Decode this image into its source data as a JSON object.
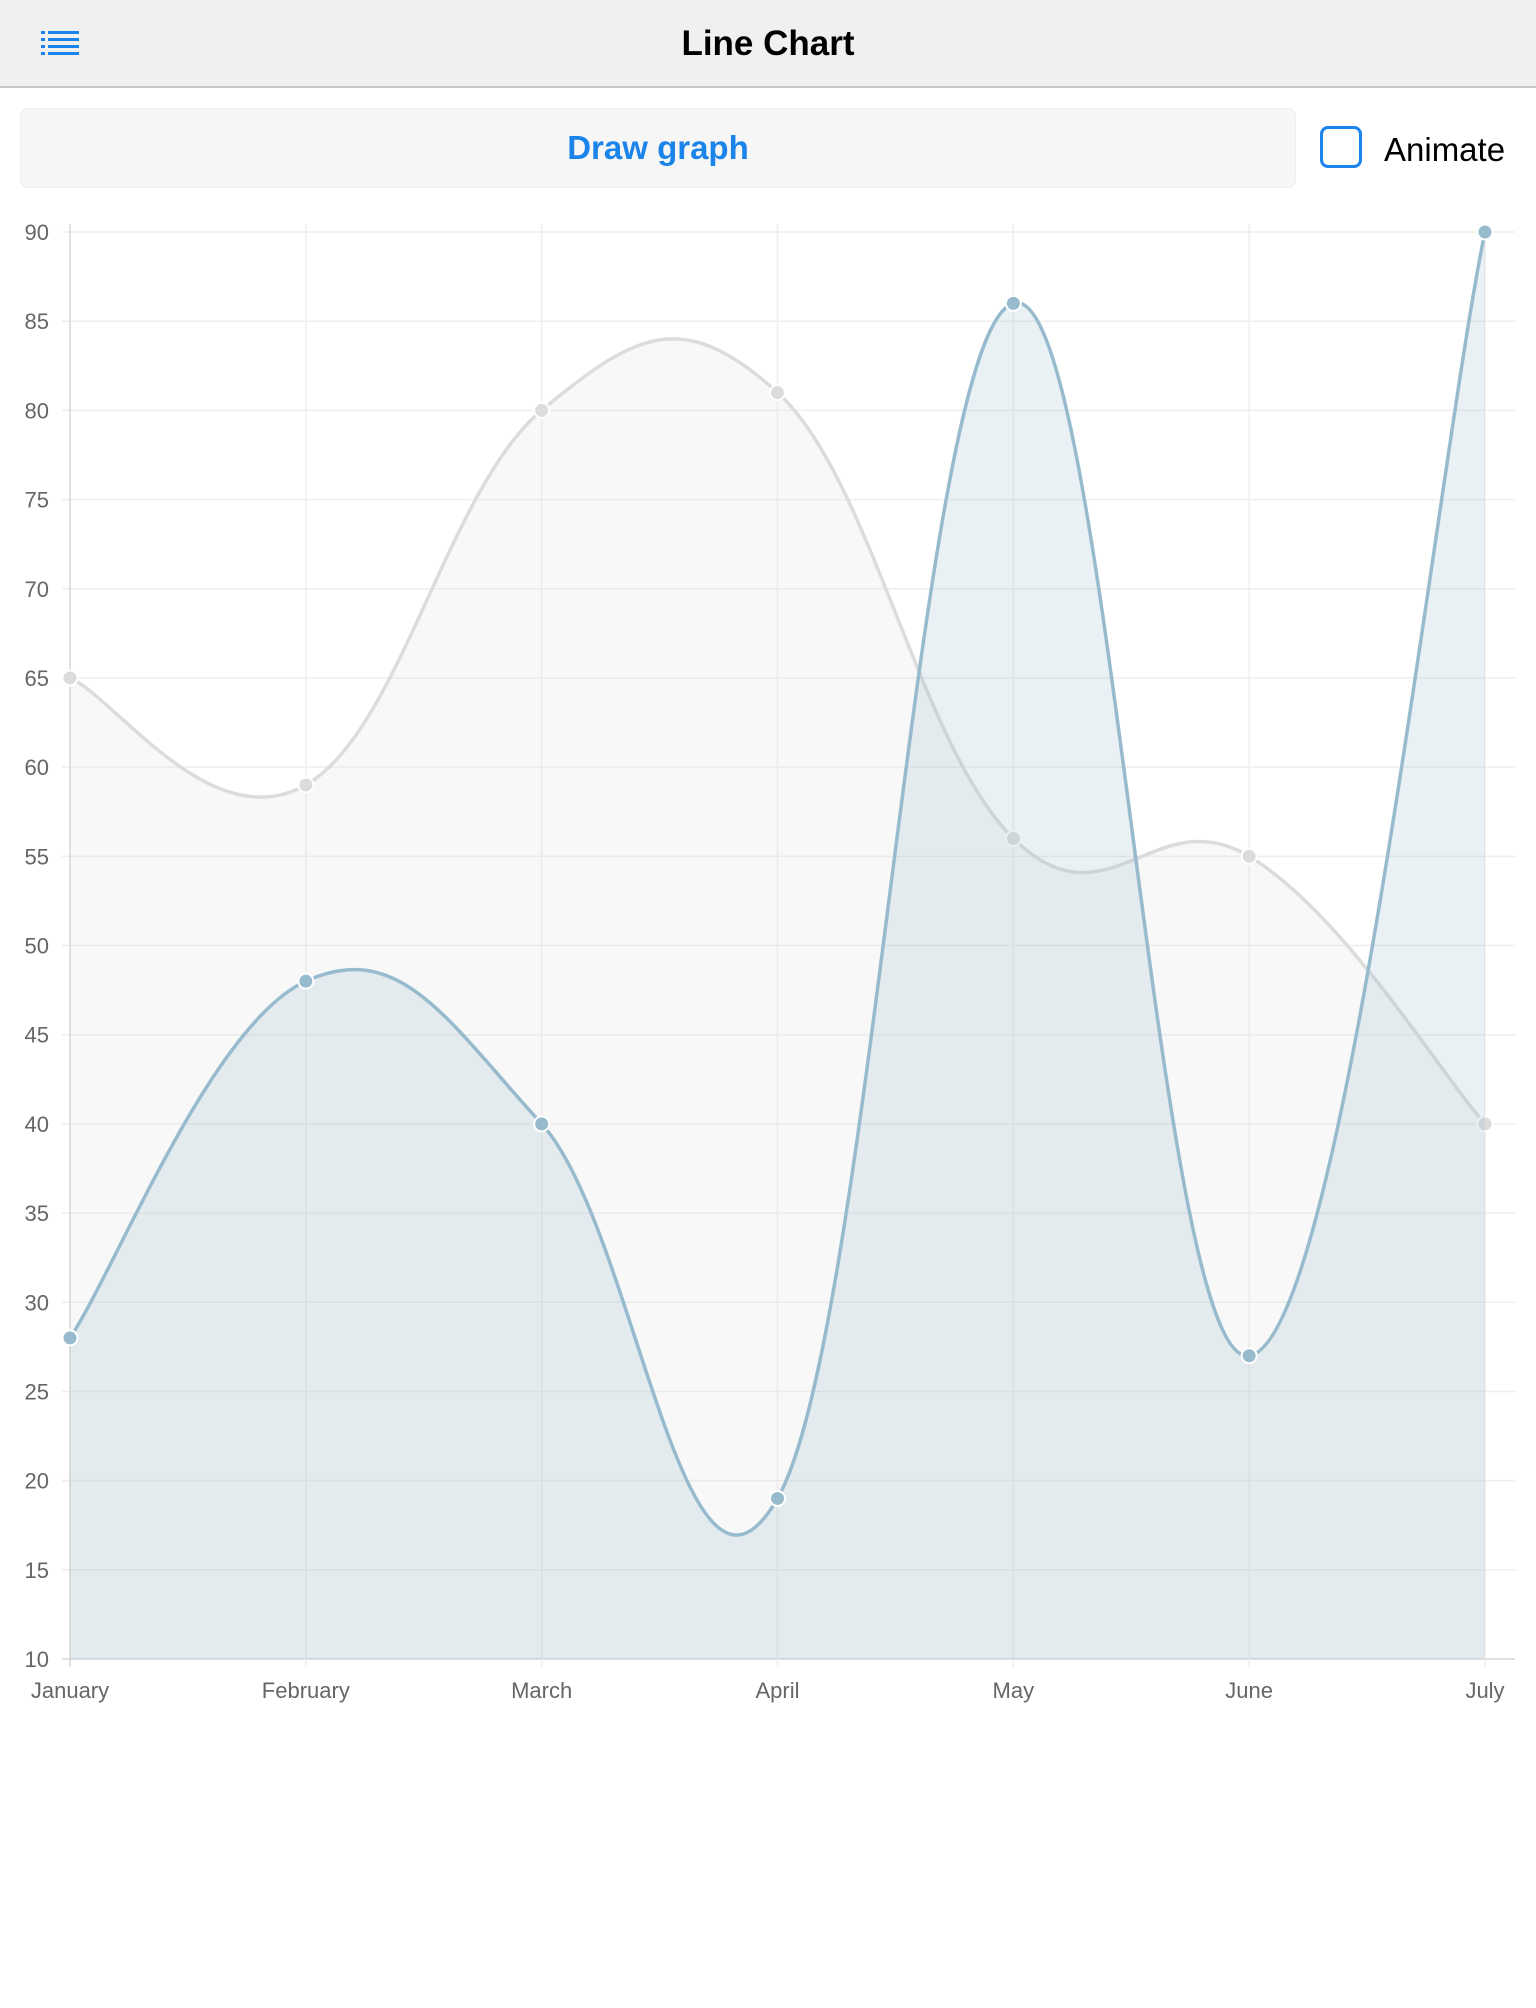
{
  "navbar": {
    "title": "Line Chart",
    "menu_icon": "list-icon"
  },
  "controls": {
    "draw_label": "Draw graph",
    "animate_label": "Animate",
    "animate_checked": false
  },
  "colors": {
    "accent": "#1a84ea",
    "series_1_line": "#dcdcdc",
    "series_1_fill": "rgba(220,220,220,0.2)",
    "series_2_line": "#97bbcd",
    "series_2_fill": "rgba(151,187,205,0.2)"
  },
  "chart_data": {
    "type": "line",
    "categories": [
      "January",
      "February",
      "March",
      "April",
      "May",
      "June",
      "July"
    ],
    "series": [
      {
        "values": [
          65,
          59,
          80,
          81,
          56,
          55,
          40
        ]
      },
      {
        "values": [
          28,
          48,
          40,
          19,
          86,
          27,
          90
        ]
      }
    ],
    "ylim": [
      10,
      90
    ],
    "y_step": 5,
    "smooth": true,
    "fill": true,
    "grid": true,
    "legend": "none"
  }
}
